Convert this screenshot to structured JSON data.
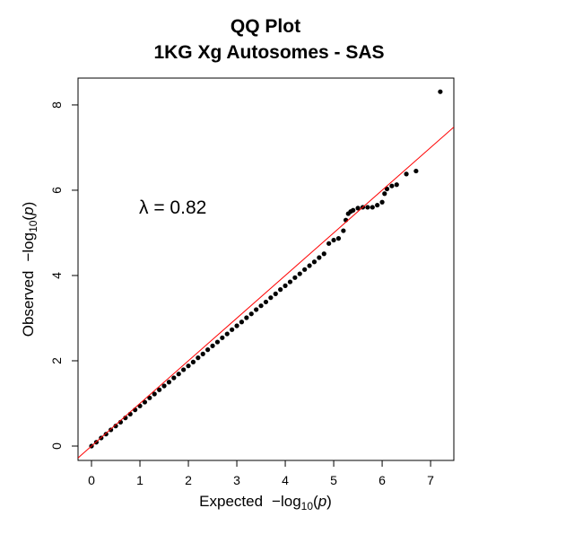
{
  "chart_data": {
    "type": "scatter",
    "title": "QQ Plot",
    "subtitle": "1KG Xg Autosomes - SAS",
    "xlabel": "Expected",
    "ylabel": "Observed",
    "log_label": "−log",
    "log_base": "10",
    "p_label": "p",
    "annotation": "λ = 0.82",
    "color": "#000000",
    "ref_line": {
      "intercept": 0,
      "slope": 1,
      "color": "#ff0000"
    },
    "xlim": [
      -0.278,
      7.48
    ],
    "ylim": [
      -0.337,
      8.63
    ],
    "xticks": [
      0,
      1,
      2,
      3,
      4,
      5,
      6,
      7
    ],
    "yticks": [
      0,
      2,
      4,
      6,
      8
    ],
    "x": [
      0,
      0.1,
      0.2,
      0.3,
      0.4,
      0.5,
      0.6,
      0.7,
      0.8,
      0.9,
      1,
      1.1,
      1.2,
      1.3,
      1.4,
      1.5,
      1.6,
      1.7,
      1.8,
      1.9,
      2,
      2.1,
      2.2,
      2.3,
      2.4,
      2.5,
      2.6,
      2.7,
      2.8,
      2.9,
      3,
      3.1,
      3.2,
      3.3,
      3.4,
      3.5,
      3.6,
      3.7,
      3.8,
      3.9,
      4,
      4.1,
      4.2,
      4.3,
      4.4,
      4.5,
      4.6,
      4.7,
      4.8,
      4.9,
      5,
      5.1,
      5.2,
      5.25,
      5.3,
      5.35,
      5.4,
      5.5,
      5.6,
      5.7,
      5.8,
      5.9,
      6,
      6.05,
      6.1,
      6.2,
      6.3,
      6.5,
      6.7,
      7.2
    ],
    "values": [
      0,
      0.09,
      0.19,
      0.28,
      0.38,
      0.47,
      0.56,
      0.66,
      0.75,
      0.85,
      0.94,
      1.03,
      1.13,
      1.22,
      1.32,
      1.41,
      1.5,
      1.6,
      1.69,
      1.79,
      1.88,
      1.97,
      2.07,
      2.16,
      2.26,
      2.35,
      2.44,
      2.54,
      2.63,
      2.73,
      2.82,
      2.91,
      3.01,
      3.1,
      3.2,
      3.29,
      3.38,
      3.48,
      3.57,
      3.67,
      3.76,
      3.85,
      3.95,
      4.04,
      4.14,
      4.23,
      4.32,
      4.42,
      4.51,
      4.75,
      4.83,
      4.87,
      5.05,
      5.3,
      5.45,
      5.5,
      5.53,
      5.58,
      5.6,
      5.6,
      5.6,
      5.65,
      5.72,
      5.92,
      6.03,
      6.1,
      6.13,
      6.38,
      6.45,
      8.31
    ]
  }
}
